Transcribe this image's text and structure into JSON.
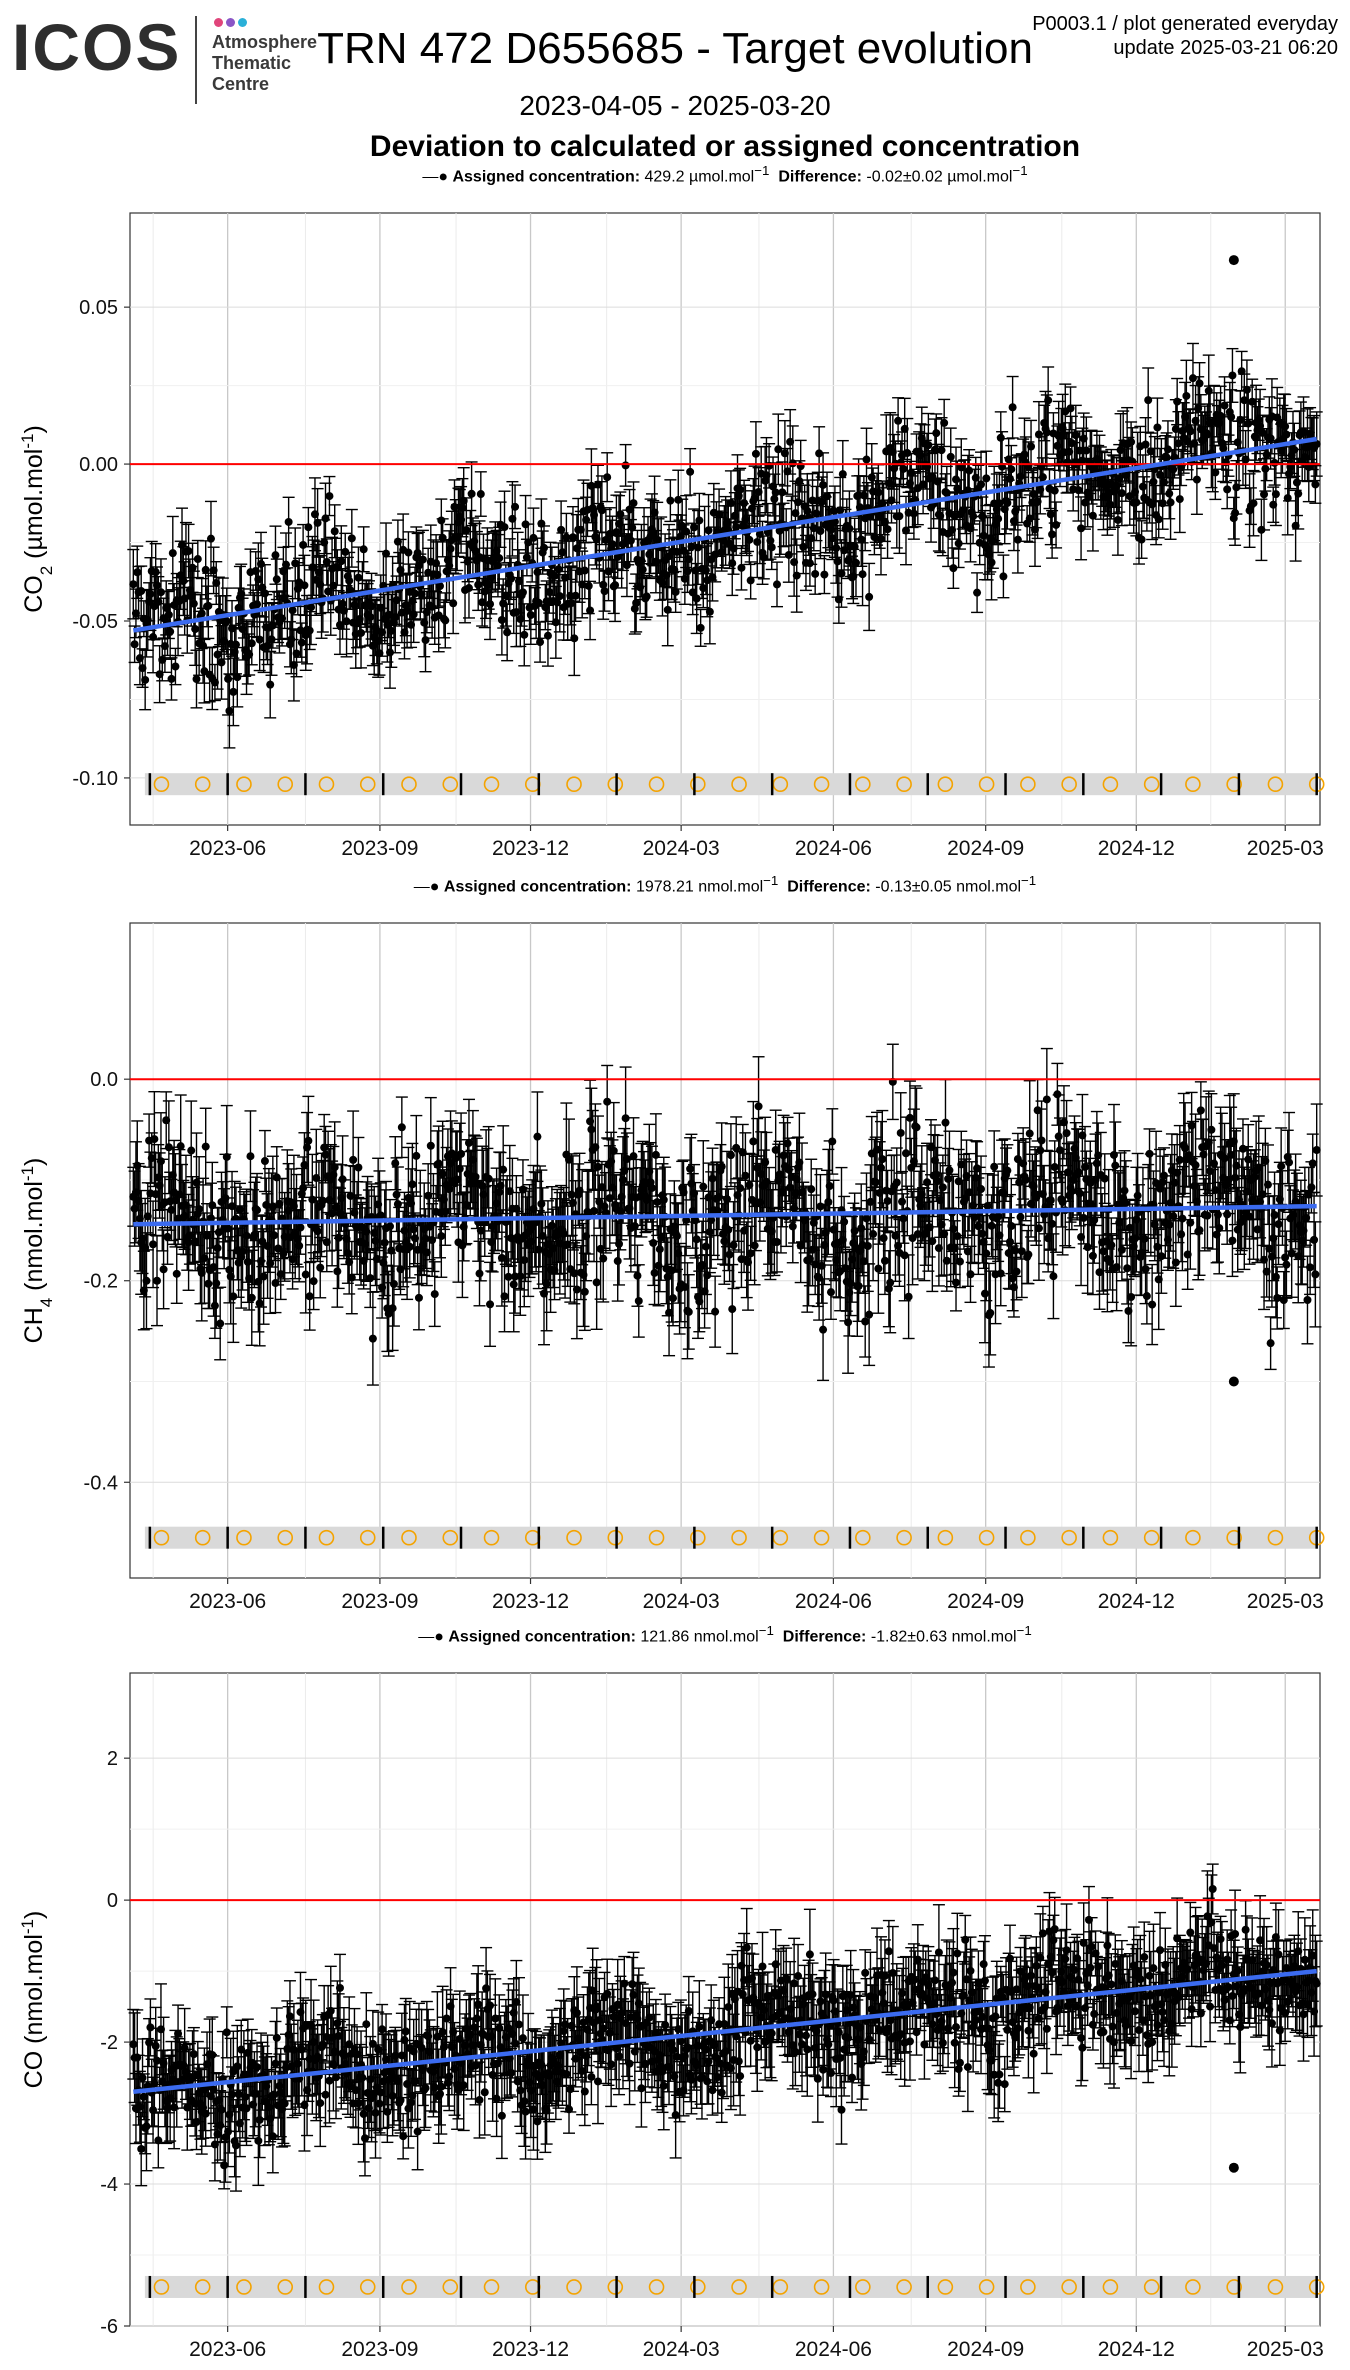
{
  "header": {
    "logo": "ICOS",
    "logo_subtitle": [
      "Atmosphere",
      "Thematic",
      "Centre"
    ],
    "logo_dot_colors": [
      "#e0457b",
      "#8a56c6",
      "#2ab0d8"
    ],
    "title": "TRN 472 D655685 - Target evolution",
    "daterange": "2023-04-05 - 2025-03-20",
    "section_title": "Deviation to calculated or assigned concentration",
    "info_line1": "P0003.1 / plot generated everyday",
    "info_line2": "update  2025-03-21 06:20"
  },
  "chart_data": [
    {
      "type": "scatter",
      "legend_assigned_label": "Assigned concentration:",
      "legend_assigned_value": "429.2",
      "legend_diff_label": "Difference:",
      "legend_diff_value": "-0.02",
      "legend_diff_pm": "0.02",
      "unit": "µmol.mol",
      "ylabel": "CO2 (µmol.mol-1)",
      "ylim": [
        -0.115,
        0.08
      ],
      "yticks": [
        0.05,
        0.0,
        -0.05,
        -0.1
      ],
      "ytick_labels": [
        "0.05",
        "0.00",
        "-0.05",
        "-0.10"
      ],
      "xlim": [
        "2023-04-03",
        "2025-03-22"
      ],
      "xticks": [
        "2023-06-01",
        "2023-09-01",
        "2023-12-01",
        "2024-03-01",
        "2024-06-01",
        "2024-09-01",
        "2024-12-01",
        "2025-03-01"
      ],
      "xtick_labels": [
        "2023-06",
        "2023-09",
        "2023-12",
        "2024-03",
        "2024-06",
        "2024-09",
        "2024-12",
        "2025-03"
      ],
      "trend": {
        "start": [
          "2023-04-05",
          -0.053
        ],
        "end": [
          "2025-03-20",
          0.008
        ]
      },
      "band_y": -0.102,
      "noise_sd": 0.012,
      "err": 0.008,
      "outlier_y": 0.065
    },
    {
      "type": "scatter",
      "legend_assigned_label": "Assigned concentration:",
      "legend_assigned_value": "1978.21",
      "legend_diff_label": "Difference:",
      "legend_diff_value": "-0.13",
      "legend_diff_pm": "0.05",
      "unit": "nmol.mol",
      "ylabel": "CH4 (nmol.mol-1)",
      "ylim": [
        -0.495,
        0.155
      ],
      "yticks": [
        0.0,
        -0.2,
        -0.4
      ],
      "ytick_labels": [
        "0.0",
        "-0.2",
        "-0.4"
      ],
      "xlim": [
        "2023-04-03",
        "2025-03-22"
      ],
      "xticks": [
        "2023-06-01",
        "2023-09-01",
        "2023-12-01",
        "2024-03-01",
        "2024-06-01",
        "2024-09-01",
        "2024-12-01",
        "2025-03-01"
      ],
      "xtick_labels": [
        "2023-06",
        "2023-09",
        "2023-12",
        "2024-03",
        "2024-06",
        "2024-09",
        "2024-12",
        "2025-03"
      ],
      "trend": {
        "start": [
          "2023-04-05",
          -0.144
        ],
        "end": [
          "2025-03-20",
          -0.126
        ]
      },
      "band_y": -0.455,
      "noise_sd": 0.045,
      "err": 0.035,
      "outlier_y": -0.3
    },
    {
      "type": "scatter",
      "legend_assigned_label": "Assigned concentration:",
      "legend_assigned_value": "121.86",
      "legend_diff_label": "Difference:",
      "legend_diff_value": "-1.82",
      "legend_diff_pm": "0.63",
      "unit": "nmol.mol",
      "ylabel": "CO (nmol.mol-1)",
      "ylim": [
        -6.0,
        3.2
      ],
      "yticks": [
        2,
        0,
        -2,
        -4,
        -6
      ],
      "ytick_labels": [
        "2",
        "0",
        "-2",
        "-4",
        "-6"
      ],
      "xlim": [
        "2023-04-03",
        "2025-03-22"
      ],
      "xticks": [
        "2023-06-01",
        "2023-09-01",
        "2023-12-01",
        "2024-03-01",
        "2024-06-01",
        "2024-09-01",
        "2024-12-01",
        "2025-03-01"
      ],
      "xtick_labels": [
        "2023-06",
        "2023-09",
        "2023-12",
        "2024-03",
        "2024-06",
        "2024-09",
        "2024-12",
        "2025-03"
      ],
      "trend": {
        "start": [
          "2023-04-05",
          -2.7
        ],
        "end": [
          "2025-03-20",
          -1.0
        ]
      },
      "band_y": -5.45,
      "noise_sd": 0.45,
      "err": 0.45,
      "outlier_y": -3.77
    }
  ]
}
